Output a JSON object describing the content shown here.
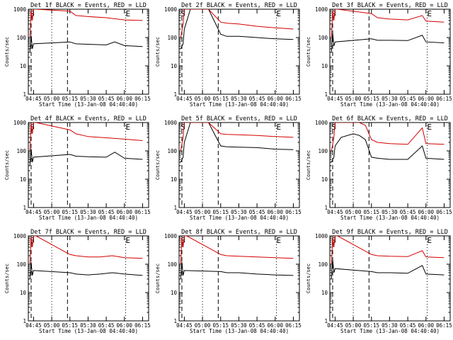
{
  "figure": {
    "background": "#ffffff",
    "event_color": "#000000",
    "lld_color": "#d40000"
  },
  "chart_data": [
    {
      "type": "line",
      "title": "Det 1f BLACK = Events, RED = LLD",
      "xlabel": "Start Time (13-Jan-08 04:40:40)",
      "ylabel": "Counts/sec",
      "x_ticks": [
        "04:45",
        "05:00",
        "05:15",
        "05:30",
        "05:45",
        "06:00",
        "06:15"
      ],
      "y_ticks": [
        "1",
        "10",
        "100",
        "1000"
      ],
      "ylog": true,
      "ylim": [
        1,
        1000
      ],
      "markers": [
        "S",
        "E"
      ],
      "series": [
        {
          "name": "Events",
          "color": "#000000",
          "x": [
            "04:42",
            "04:43",
            "04:44",
            "04:45",
            "05:15",
            "05:20",
            "05:30",
            "05:45",
            "05:52",
            "06:00",
            "06:15"
          ],
          "values": [
            30,
            120,
            40,
            60,
            70,
            60,
            58,
            55,
            70,
            52,
            48
          ]
        },
        {
          "name": "LLD",
          "color": "#d40000",
          "x": [
            "04:42",
            "04:43",
            "04:44",
            "04:45",
            "04:47",
            "05:15",
            "05:20",
            "05:30",
            "05:45",
            "06:00",
            "06:15"
          ],
          "values": [
            100,
            900,
            400,
            1000,
            1000,
            850,
            600,
            550,
            500,
            420,
            400
          ]
        }
      ]
    },
    {
      "type": "line",
      "title": "Det 2f BLACK = Events, RED = LLD",
      "xlabel": "Start Time (13-Jan-08 04:40:40)",
      "ylabel": "Counts/sec",
      "x_ticks": [
        "04:45",
        "05:00",
        "05:15",
        "05:30",
        "05:45",
        "06:00",
        "06:15"
      ],
      "y_ticks": [
        "1",
        "10",
        "100",
        "1000"
      ],
      "ylog": true,
      "ylim": [
        1,
        1000
      ],
      "markers": [
        "S",
        "E"
      ],
      "series": [
        {
          "name": "Events",
          "color": "#000000",
          "x": [
            "04:42",
            "04:44",
            "04:45",
            "04:50",
            "05:00",
            "05:05",
            "05:15",
            "05:20",
            "05:30",
            "05:45",
            "06:00",
            "06:15"
          ],
          "values": [
            40,
            60,
            200,
            1000,
            1000,
            1000,
            130,
            110,
            110,
            100,
            90,
            85
          ]
        },
        {
          "name": "LLD",
          "color": "#d40000",
          "x": [
            "04:42",
            "04:44",
            "04:45",
            "04:50",
            "05:00",
            "05:05",
            "05:15",
            "05:20",
            "05:30",
            "05:45",
            "06:00",
            "06:15"
          ],
          "values": [
            100,
            300,
            1000,
            1000,
            1000,
            1000,
            350,
            320,
            300,
            250,
            220,
            200
          ]
        }
      ]
    },
    {
      "type": "line",
      "title": "Det 3f BLACK = Events, RED = LLD",
      "xlabel": "Start Time (13-Jan-08 04:40:40)",
      "ylabel": "Counts/sec",
      "x_ticks": [
        "04:45",
        "05:00",
        "05:15",
        "05:30",
        "05:45",
        "06:00",
        "06:15"
      ],
      "y_ticks": [
        "1",
        "10",
        "100",
        "1000"
      ],
      "ylog": true,
      "ylim": [
        1,
        1000
      ],
      "markers": [
        "S",
        "E"
      ],
      "series": [
        {
          "name": "Events",
          "color": "#000000",
          "x": [
            "04:42",
            "04:43",
            "04:44",
            "04:45",
            "05:15",
            "05:20",
            "05:30",
            "05:45",
            "05:57",
            "06:00",
            "06:15"
          ],
          "values": [
            30,
            150,
            50,
            70,
            90,
            80,
            80,
            78,
            120,
            70,
            65
          ]
        },
        {
          "name": "LLD",
          "color": "#d40000",
          "x": [
            "04:42",
            "04:43",
            "04:44",
            "04:45",
            "04:47",
            "05:15",
            "05:20",
            "05:30",
            "05:45",
            "05:57",
            "06:00",
            "06:15"
          ],
          "values": [
            100,
            900,
            400,
            1000,
            1000,
            700,
            500,
            450,
            420,
            600,
            380,
            350
          ]
        }
      ]
    },
    {
      "type": "line",
      "title": "Det 4f BLACK = Events, RED = LLD",
      "xlabel": "Start Time (13-Jan-08 04:40:40)",
      "ylabel": "Counts/sec",
      "x_ticks": [
        "04:45",
        "05:00",
        "05:15",
        "05:30",
        "05:45",
        "06:00",
        "06:15"
      ],
      "y_ticks": [
        "1",
        "10",
        "100",
        "1000"
      ],
      "ylog": true,
      "ylim": [
        1,
        1000
      ],
      "markers": [
        "S",
        "E"
      ],
      "series": [
        {
          "name": "Events",
          "color": "#000000",
          "x": [
            "04:42",
            "04:43",
            "04:44",
            "04:45",
            "05:15",
            "05:20",
            "05:30",
            "05:45",
            "05:52",
            "06:00",
            "06:15"
          ],
          "values": [
            30,
            120,
            40,
            60,
            75,
            65,
            62,
            60,
            90,
            55,
            50
          ]
        },
        {
          "name": "LLD",
          "color": "#d40000",
          "x": [
            "04:42",
            "04:43",
            "04:44",
            "04:45",
            "04:47",
            "05:15",
            "05:20",
            "05:30",
            "05:45",
            "06:00",
            "06:15"
          ],
          "values": [
            100,
            900,
            400,
            1000,
            1000,
            550,
            400,
            320,
            290,
            260,
            230
          ]
        }
      ]
    },
    {
      "type": "line",
      "title": "Det 5f BLACK = Events, RED = LLD",
      "xlabel": "Start Time (13-Jan-08 04:40:40)",
      "ylabel": "Counts/sec",
      "x_ticks": [
        "04:45",
        "05:00",
        "05:15",
        "05:30",
        "05:45",
        "06:00",
        "06:15"
      ],
      "y_ticks": [
        "1",
        "10",
        "100",
        "1000"
      ],
      "ylog": true,
      "ylim": [
        1,
        1000
      ],
      "markers": [
        "S",
        "E"
      ],
      "series": [
        {
          "name": "Events",
          "color": "#000000",
          "x": [
            "04:42",
            "04:44",
            "04:45",
            "04:50",
            "05:00",
            "05:05",
            "05:15",
            "05:20",
            "05:30",
            "05:45",
            "06:00",
            "06:15"
          ],
          "values": [
            40,
            60,
            200,
            1000,
            1000,
            1000,
            150,
            140,
            135,
            130,
            115,
            110
          ]
        },
        {
          "name": "LLD",
          "color": "#d40000",
          "x": [
            "04:42",
            "04:44",
            "04:45",
            "04:50",
            "05:00",
            "05:05",
            "05:15",
            "05:20",
            "05:30",
            "05:45",
            "06:00",
            "06:15"
          ],
          "values": [
            100,
            300,
            1000,
            1000,
            1000,
            1000,
            400,
            380,
            370,
            350,
            320,
            300
          ]
        }
      ]
    },
    {
      "type": "line",
      "title": "Det 6f BLACK = Events, RED = LLD",
      "xlabel": "Start Time (13-Jan-08 04:40:40)",
      "ylabel": "Counts/sec",
      "x_ticks": [
        "04:45",
        "05:00",
        "05:15",
        "05:30",
        "05:45",
        "06:00",
        "06:15"
      ],
      "y_ticks": [
        "1",
        "10",
        "100",
        "1000"
      ],
      "ylog": true,
      "ylim": [
        1,
        1000
      ],
      "markers": [
        "S",
        "E"
      ],
      "series": [
        {
          "name": "Events",
          "color": "#000000",
          "x": [
            "04:42",
            "04:44",
            "04:45",
            "04:50",
            "05:00",
            "05:05",
            "05:10",
            "05:15",
            "05:20",
            "05:30",
            "05:45",
            "05:57",
            "06:00",
            "06:15"
          ],
          "values": [
            40,
            60,
            150,
            300,
            400,
            350,
            250,
            60,
            55,
            50,
            50,
            150,
            55,
            50
          ]
        },
        {
          "name": "LLD",
          "color": "#d40000",
          "x": [
            "04:42",
            "04:44",
            "04:45",
            "04:50",
            "05:00",
            "05:05",
            "05:10",
            "05:15",
            "05:20",
            "05:30",
            "05:45",
            "05:57",
            "06:00",
            "06:15"
          ],
          "values": [
            100,
            300,
            1000,
            1000,
            1000,
            1000,
            800,
            250,
            200,
            180,
            170,
            650,
            180,
            170
          ]
        }
      ]
    },
    {
      "type": "line",
      "title": "Det 7f BLACK = Events, RED = LLD",
      "xlabel": "Start Time (13-Jan-08 04:40:40)",
      "ylabel": "Counts/sec",
      "x_ticks": [
        "04:45",
        "05:00",
        "05:15",
        "05:30",
        "05:45",
        "06:00",
        "06:15"
      ],
      "y_ticks": [
        "1",
        "10",
        "100",
        "1000"
      ],
      "ylog": true,
      "ylim": [
        1,
        1000
      ],
      "markers": [
        "S",
        "E"
      ],
      "series": [
        {
          "name": "Events",
          "color": "#000000",
          "x": [
            "04:42",
            "04:43",
            "04:44",
            "04:45",
            "05:15",
            "05:20",
            "05:30",
            "05:40",
            "05:50",
            "06:00",
            "06:15"
          ],
          "values": [
            30,
            120,
            40,
            60,
            50,
            45,
            42,
            45,
            50,
            45,
            40
          ]
        },
        {
          "name": "LLD",
          "color": "#d40000",
          "x": [
            "04:42",
            "04:43",
            "04:44",
            "04:45",
            "04:47",
            "05:15",
            "05:20",
            "05:30",
            "05:40",
            "05:50",
            "06:00",
            "06:15"
          ],
          "values": [
            100,
            900,
            400,
            1000,
            1000,
            220,
            200,
            180,
            180,
            200,
            170,
            160
          ]
        }
      ]
    },
    {
      "type": "line",
      "title": "Det 8f BLACK = Events, RED = LLD",
      "xlabel": "Start Time (13-Jan-08 04:40:40)",
      "ylabel": "Counts/sec",
      "x_ticks": [
        "04:45",
        "05:00",
        "05:15",
        "05:30",
        "05:45",
        "06:00",
        "06:15"
      ],
      "y_ticks": [
        "1",
        "10",
        "100",
        "1000"
      ],
      "ylog": true,
      "ylim": [
        1,
        1000
      ],
      "markers": [
        "S",
        "E"
      ],
      "series": [
        {
          "name": "Events",
          "color": "#000000",
          "x": [
            "04:42",
            "04:43",
            "04:44",
            "04:45",
            "05:15",
            "05:20",
            "05:30",
            "05:45",
            "06:00",
            "06:15"
          ],
          "values": [
            30,
            120,
            40,
            60,
            55,
            50,
            50,
            45,
            42,
            40
          ]
        },
        {
          "name": "LLD",
          "color": "#d40000",
          "x": [
            "04:42",
            "04:43",
            "04:44",
            "04:45",
            "04:47",
            "05:15",
            "05:20",
            "05:30",
            "05:45",
            "06:00",
            "06:15"
          ],
          "values": [
            100,
            900,
            400,
            1000,
            1000,
            220,
            200,
            190,
            180,
            170,
            160
          ]
        }
      ]
    },
    {
      "type": "line",
      "title": "Det 9f BLACK = Events, RED = LLD",
      "xlabel": "Start Time (13-Jan-08 04:40:40)",
      "ylabel": "Counts/sec",
      "x_ticks": [
        "04:45",
        "05:00",
        "05:15",
        "05:30",
        "05:45",
        "06:00",
        "06:15"
      ],
      "y_ticks": [
        "1",
        "10",
        "100",
        "1000"
      ],
      "ylog": true,
      "ylim": [
        1,
        1000
      ],
      "markers": [
        "S",
        "E"
      ],
      "series": [
        {
          "name": "Events",
          "color": "#000000",
          "x": [
            "04:42",
            "04:43",
            "04:44",
            "04:45",
            "05:15",
            "05:20",
            "05:30",
            "05:45",
            "05:57",
            "06:00",
            "06:15"
          ],
          "values": [
            30,
            150,
            50,
            70,
            55,
            50,
            50,
            48,
            90,
            45,
            42
          ]
        },
        {
          "name": "LLD",
          "color": "#d40000",
          "x": [
            "04:42",
            "04:43",
            "04:44",
            "04:45",
            "04:47",
            "05:15",
            "05:20",
            "05:30",
            "05:45",
            "05:57",
            "06:00",
            "06:15"
          ],
          "values": [
            100,
            900,
            400,
            1000,
            1000,
            220,
            200,
            190,
            185,
            300,
            180,
            170
          ]
        }
      ]
    }
  ]
}
